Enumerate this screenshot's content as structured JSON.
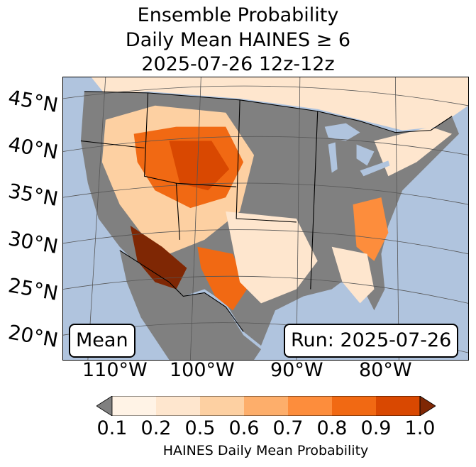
{
  "title": {
    "line1": "Ensemble Probability",
    "line2": "Daily Mean HAINES ≥ 6",
    "line3": "2025-07-26 12z-12z"
  },
  "map": {
    "lat_labels": [
      "45°N",
      "40°N",
      "35°N",
      "30°N",
      "25°N",
      "20°N"
    ],
    "lon_labels": [
      "110°W",
      "100°W",
      "90°W",
      "80°W"
    ],
    "stat_label": "Mean",
    "run_label": "Run: 2025-07-26",
    "ocean_color": "#b0c4de",
    "land_below_threshold_color": "#808080"
  },
  "colorbar": {
    "ticks": [
      "0.1",
      "0.2",
      "0.5",
      "0.6",
      "0.7",
      "0.8",
      "0.9",
      "1.0"
    ],
    "colors": [
      "#fff3e6",
      "#fee6ce",
      "#fdd0a2",
      "#fdae6b",
      "#fd8d3c",
      "#f16913",
      "#d94801",
      "#7f2704"
    ],
    "under_color": "#808080",
    "label": "HAINES Daily Mean Probability"
  }
}
